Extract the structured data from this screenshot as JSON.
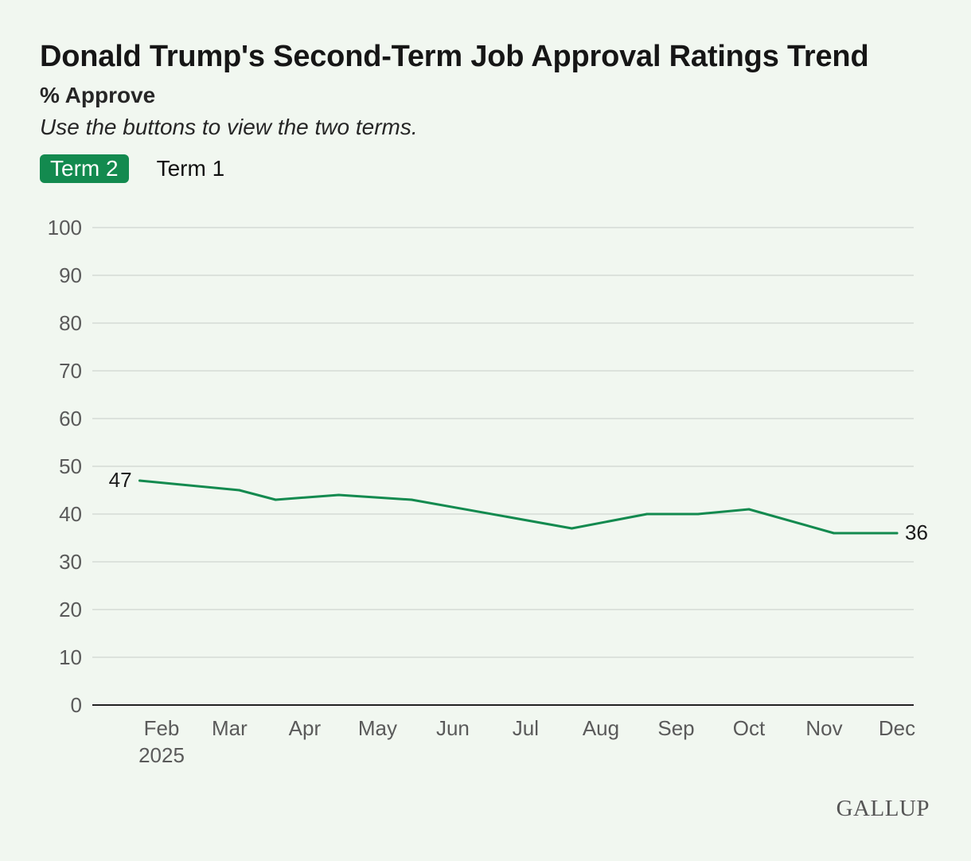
{
  "title": "Donald Trump's Second-Term Job Approval Ratings Trend",
  "subtitle": "% Approve",
  "note": "Use the buttons to view the two terms.",
  "buttons": [
    {
      "label": "Term 2",
      "active": true
    },
    {
      "label": "Term 1",
      "active": false
    }
  ],
  "logo": "GALLUP",
  "colors": {
    "line": "#138a4f",
    "grid": "#d6dcd5",
    "axis": "#222222",
    "tick": "#5a5a5a",
    "background": "#f1f7f0"
  },
  "chart_data": {
    "type": "line",
    "title": "Donald Trump's Second-Term Job Approval Ratings Trend",
    "ylabel": "% Approve",
    "xlabel": "",
    "ylim": [
      0,
      100
    ],
    "yticks": [
      0,
      10,
      20,
      30,
      40,
      50,
      60,
      70,
      80,
      90,
      100
    ],
    "xlim": [
      "2025-01-06",
      "2025-12-31"
    ],
    "xticks": [
      {
        "label": "Feb",
        "sublabel": "2025",
        "date": "2025-02-01"
      },
      {
        "label": "Mar",
        "date": "2025-03-01"
      },
      {
        "label": "Apr",
        "date": "2025-04-01"
      },
      {
        "label": "May",
        "date": "2025-05-01"
      },
      {
        "label": "Jun",
        "date": "2025-06-01"
      },
      {
        "label": "Jul",
        "date": "2025-07-01"
      },
      {
        "label": "Aug",
        "date": "2025-08-01"
      },
      {
        "label": "Sep",
        "date": "2025-09-01"
      },
      {
        "label": "Oct",
        "date": "2025-10-01"
      },
      {
        "label": "Nov",
        "date": "2025-11-01"
      },
      {
        "label": "Dec",
        "date": "2025-12-01"
      }
    ],
    "grid": true,
    "series": [
      {
        "x": [
          "2025-01-23",
          "2025-03-05",
          "2025-03-20",
          "2025-04-15",
          "2025-05-15",
          "2025-07-20",
          "2025-08-20",
          "2025-09-10",
          "2025-10-01",
          "2025-11-05",
          "2025-12-01"
        ],
        "y": [
          47,
          45,
          43,
          44,
          43,
          37,
          40,
          40,
          41,
          36,
          36
        ]
      }
    ],
    "data_labels": [
      {
        "text": "47",
        "index": 0,
        "side": "left"
      },
      {
        "text": "36",
        "index": 10,
        "side": "right"
      }
    ]
  }
}
